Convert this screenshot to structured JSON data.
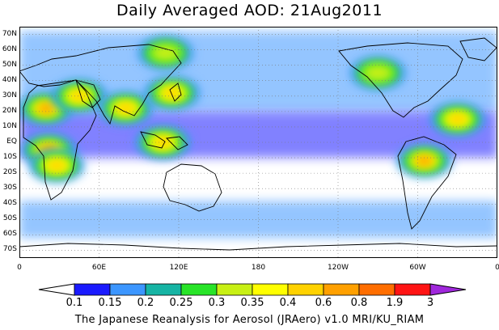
{
  "title": "Daily Averaged AOD: 21Aug2011",
  "map": {
    "lat_labels": [
      "70N",
      "60N",
      "50N",
      "40N",
      "30N",
      "20N",
      "10N",
      "EQ",
      "10S",
      "20S",
      "30S",
      "40S",
      "50S",
      "60S",
      "70S"
    ],
    "lat_values": [
      70,
      60,
      50,
      40,
      30,
      20,
      10,
      0,
      -10,
      -20,
      -30,
      -40,
      -50,
      -60,
      -70
    ],
    "lon_labels": [
      "0",
      "60E",
      "120E",
      "180",
      "120W",
      "60W",
      "0"
    ],
    "lon_values": [
      0,
      60,
      120,
      180,
      240,
      300,
      360
    ],
    "lat_range": [
      -75,
      75
    ],
    "lon_range": [
      0,
      360
    ],
    "ocean_color": "#ffffff",
    "coastline_color": "#000000",
    "grid": "dotted",
    "field": "aerosol optical depth",
    "aod_blobs": [
      {
        "region": "Sahara / Arabia",
        "lon": 20,
        "lat": 22,
        "level": 0.6
      },
      {
        "region": "Middle East",
        "lon": 45,
        "lat": 30,
        "level": 0.5
      },
      {
        "region": "Central Africa",
        "lon": 22,
        "lat": -5,
        "level": 0.6
      },
      {
        "region": "Southern Africa",
        "lon": 28,
        "lat": -15,
        "level": 0.4
      },
      {
        "region": "India",
        "lon": 80,
        "lat": 22,
        "level": 0.45
      },
      {
        "region": "East China",
        "lon": 115,
        "lat": 32,
        "level": 0.55
      },
      {
        "region": "Indonesia",
        "lon": 108,
        "lat": 0,
        "level": 0.4
      },
      {
        "region": "Siberia",
        "lon": 110,
        "lat": 58,
        "level": 0.3
      },
      {
        "region": "North America",
        "lon": 270,
        "lat": 45,
        "level": 0.3
      },
      {
        "region": "South America",
        "lon": 305,
        "lat": -12,
        "level": 0.6
      },
      {
        "region": "Atlantic dust",
        "lon": 330,
        "lat": 15,
        "level": 0.45
      }
    ]
  },
  "colorbar": {
    "labels": [
      "0.1",
      "0.15",
      "0.2",
      "0.25",
      "0.3",
      "0.35",
      "0.4",
      "0.6",
      "0.8",
      "1.9",
      "3"
    ],
    "colors": [
      "#ffffff",
      "#1a1aff",
      "#3c96ff",
      "#16b4a4",
      "#28e428",
      "#c8f014",
      "#ffff00",
      "#ffd200",
      "#ffa000",
      "#ff6e00",
      "#ff1414",
      "#a028dc"
    ]
  },
  "credit": "The Japanese Reanalysis for Aerosol (JRAero) v1.0 MRI/KU_RIAM"
}
